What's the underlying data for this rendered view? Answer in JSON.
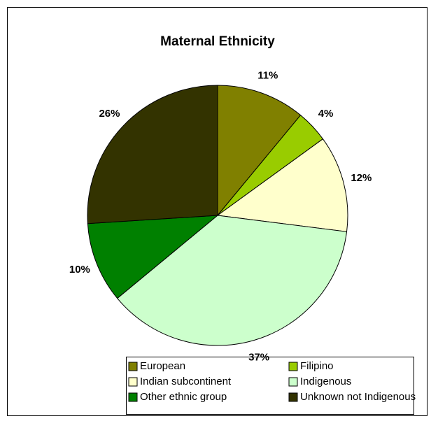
{
  "chart_data": {
    "type": "pie",
    "title": "Maternal Ethnicity",
    "categories": [
      "European",
      "Filipino",
      "Indian subcontinent",
      "Indigenous",
      "Other ethnic group",
      "Unknown not Indigenous"
    ],
    "values": [
      11,
      4,
      12,
      37,
      10,
      26
    ],
    "value_labels": [
      "11%",
      "4%",
      "12%",
      "37%",
      "10%",
      "26%"
    ],
    "colors": [
      "#808000",
      "#99cc00",
      "#ffffcc",
      "#ccffcc",
      "#008000",
      "#333300"
    ],
    "legend": "bottom"
  }
}
